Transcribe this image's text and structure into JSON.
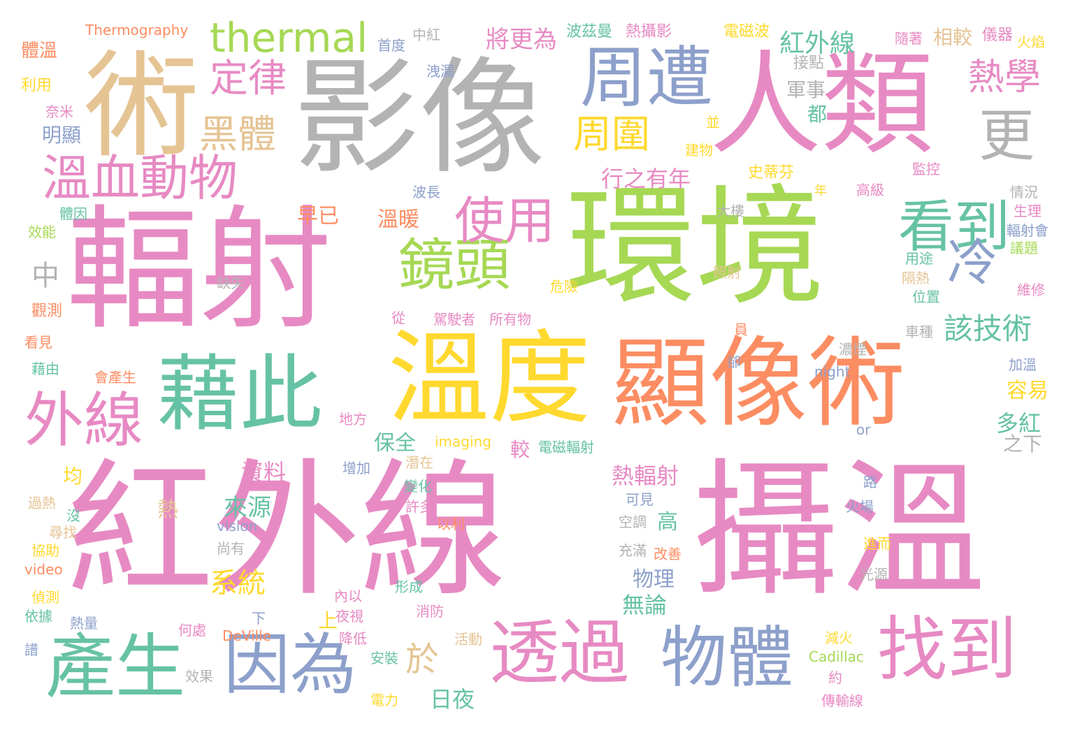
{
  "palette": {
    "pink": "#e78ac3",
    "green": "#a6d854",
    "gray": "#b3b3b3",
    "tan": "#e5c494",
    "blue": "#8da0cb",
    "orange": "#fc8d62",
    "teal": "#66c2a5",
    "yellow": "#ffd92f"
  },
  "words": [
    {
      "t": "紅外線",
      "c": "pink"
    },
    {
      "t": "攝溫",
      "c": "pink"
    },
    {
      "t": "輻射",
      "c": "pink"
    },
    {
      "t": "環境",
      "c": "green"
    },
    {
      "t": "影像",
      "c": "gray"
    },
    {
      "t": "人類",
      "c": "pink"
    },
    {
      "t": "術",
      "c": "tan"
    },
    {
      "t": "溫度",
      "c": "yellow"
    },
    {
      "t": "顯像術",
      "c": "orange"
    },
    {
      "t": "藉此",
      "c": "teal"
    },
    {
      "t": "周遭",
      "c": "blue"
    },
    {
      "t": "找到",
      "c": "pink"
    },
    {
      "t": "透過",
      "c": "pink"
    },
    {
      "t": "物體",
      "c": "blue"
    },
    {
      "t": "因為",
      "c": "blue"
    },
    {
      "t": "產生",
      "c": "teal"
    },
    {
      "t": "外線",
      "c": "pink"
    },
    {
      "t": "溫血動物",
      "c": "pink"
    },
    {
      "t": "鏡頭",
      "c": "green"
    },
    {
      "t": "看到",
      "c": "teal"
    },
    {
      "t": "更",
      "c": "gray"
    },
    {
      "t": "冷",
      "c": "blue"
    },
    {
      "t": "使用",
      "c": "pink"
    },
    {
      "t": "thermal",
      "c": "green"
    },
    {
      "t": "定律",
      "c": "pink"
    },
    {
      "t": "黑體",
      "c": "tan"
    },
    {
      "t": "周圍",
      "c": "yellow"
    },
    {
      "t": "熱學",
      "c": "pink"
    },
    {
      "t": "該技術",
      "c": "teal"
    },
    {
      "t": "於",
      "c": "tan"
    },
    {
      "t": "紅外線",
      "c": "teal"
    },
    {
      "t": "將更為",
      "c": "pink"
    },
    {
      "t": "行之有年",
      "c": "pink"
    },
    {
      "t": "熱輻射",
      "c": "pink"
    },
    {
      "t": "系統",
      "c": "yellow"
    },
    {
      "t": "來源",
      "c": "teal"
    },
    {
      "t": "資料",
      "c": "pink"
    },
    {
      "t": "物理",
      "c": "blue"
    },
    {
      "t": "無論",
      "c": "teal"
    },
    {
      "t": "日夜",
      "c": "teal"
    },
    {
      "t": "多紅",
      "c": "teal"
    },
    {
      "t": "容易",
      "c": "yellow"
    },
    {
      "t": "保全",
      "c": "teal"
    },
    {
      "t": "早已",
      "c": "orange"
    },
    {
      "t": "溫暖",
      "c": "orange"
    },
    {
      "t": "高",
      "c": "teal"
    },
    {
      "t": "明顯",
      "c": "blue"
    },
    {
      "t": "軍事",
      "c": "gray"
    },
    {
      "t": "都",
      "c": "teal"
    },
    {
      "t": "中",
      "c": "gray"
    },
    {
      "t": "均",
      "c": "yellow"
    },
    {
      "t": "熱",
      "c": "tan"
    },
    {
      "t": "上",
      "c": "yellow"
    },
    {
      "t": "較",
      "c": "pink"
    },
    {
      "t": "體溫",
      "c": "orange"
    },
    {
      "t": "Thermography",
      "c": "orange"
    },
    {
      "t": "首度",
      "c": "blue"
    },
    {
      "t": "中紅",
      "c": "gray"
    },
    {
      "t": "波茲曼",
      "c": "teal"
    },
    {
      "t": "熱攝影",
      "c": "pink"
    },
    {
      "t": "電磁波",
      "c": "yellow"
    },
    {
      "t": "相較",
      "c": "tan"
    },
    {
      "t": "隨著",
      "c": "pink"
    },
    {
      "t": "儀器",
      "c": "pink"
    },
    {
      "t": "火焰",
      "c": "yellow"
    },
    {
      "t": "接點",
      "c": "gray"
    },
    {
      "t": "洩漏",
      "c": "blue"
    },
    {
      "t": "利用",
      "c": "yellow"
    },
    {
      "t": "奈米",
      "c": "pink"
    },
    {
      "t": "並",
      "c": "yellow"
    },
    {
      "t": "建物",
      "c": "yellow"
    },
    {
      "t": "史蒂芬",
      "c": "yellow"
    },
    {
      "t": "監控",
      "c": "pink"
    },
    {
      "t": "波長",
      "c": "blue"
    },
    {
      "t": "年",
      "c": "yellow"
    },
    {
      "t": "高級",
      "c": "pink"
    },
    {
      "t": "情況",
      "c": "gray"
    },
    {
      "t": "生理",
      "c": "pink"
    },
    {
      "t": "輻射會",
      "c": "blue"
    },
    {
      "t": "議題",
      "c": "green"
    },
    {
      "t": "體因",
      "c": "teal"
    },
    {
      "t": "效能",
      "c": "green"
    },
    {
      "t": "大樓",
      "c": "gray"
    },
    {
      "t": "用途",
      "c": "teal"
    },
    {
      "t": "隔熱",
      "c": "tan"
    },
    {
      "t": "照射",
      "c": "tan"
    },
    {
      "t": "位置",
      "c": "teal"
    },
    {
      "t": "維修",
      "c": "pink"
    },
    {
      "t": "缺失",
      "c": "gray"
    },
    {
      "t": "危險",
      "c": "yellow"
    },
    {
      "t": "觀測",
      "c": "orange"
    },
    {
      "t": "從",
      "c": "pink"
    },
    {
      "t": "駕駛者",
      "c": "pink"
    },
    {
      "t": "所有物",
      "c": "pink"
    },
    {
      "t": "員",
      "c": "orange"
    },
    {
      "t": "車種",
      "c": "gray"
    },
    {
      "t": "看見",
      "c": "orange"
    },
    {
      "t": "濃煙",
      "c": "gray"
    },
    {
      "t": "藉由",
      "c": "teal"
    },
    {
      "t": "會產生",
      "c": "orange"
    },
    {
      "t": "卻",
      "c": "blue"
    },
    {
      "t": "night",
      "c": "blue"
    },
    {
      "t": "加溫",
      "c": "blue"
    },
    {
      "t": "地方",
      "c": "pink"
    },
    {
      "t": "imaging",
      "c": "yellow"
    },
    {
      "t": "電磁輻射",
      "c": "teal"
    },
    {
      "t": "or",
      "c": "blue"
    },
    {
      "t": "之下",
      "c": "gray"
    },
    {
      "t": "增加",
      "c": "blue"
    },
    {
      "t": "潛在",
      "c": "tan"
    },
    {
      "t": "路",
      "c": "blue"
    },
    {
      "t": "變化",
      "c": "teal"
    },
    {
      "t": "可見",
      "c": "blue"
    },
    {
      "t": "許多",
      "c": "pink"
    },
    {
      "t": "以利",
      "c": "orange"
    },
    {
      "t": "過熱",
      "c": "tan"
    },
    {
      "t": "沒",
      "c": "teal"
    },
    {
      "t": "vision",
      "c": "blue"
    },
    {
      "t": "空調",
      "c": "gray"
    },
    {
      "t": "火場",
      "c": "blue"
    },
    {
      "t": "尋找",
      "c": "tan"
    },
    {
      "t": "協助",
      "c": "yellow"
    },
    {
      "t": "尚有",
      "c": "gray"
    },
    {
      "t": "充滿",
      "c": "gray"
    },
    {
      "t": "改善",
      "c": "orange"
    },
    {
      "t": "進而",
      "c": "yellow"
    },
    {
      "t": "video",
      "c": "orange"
    },
    {
      "t": "光源",
      "c": "gray"
    },
    {
      "t": "形成",
      "c": "teal"
    },
    {
      "t": "內以",
      "c": "pink"
    },
    {
      "t": "偵測",
      "c": "yellow"
    },
    {
      "t": "消防",
      "c": "pink"
    },
    {
      "t": "依據",
      "c": "teal"
    },
    {
      "t": "夜視",
      "c": "pink"
    },
    {
      "t": "下",
      "c": "blue"
    },
    {
      "t": "熱量",
      "c": "blue"
    },
    {
      "t": "何處",
      "c": "pink"
    },
    {
      "t": "DeVille",
      "c": "orange"
    },
    {
      "t": "降低",
      "c": "pink"
    },
    {
      "t": "活動",
      "c": "tan"
    },
    {
      "t": "減火",
      "c": "yellow"
    },
    {
      "t": "譜",
      "c": "blue"
    },
    {
      "t": "安裝",
      "c": "teal"
    },
    {
      "t": "Cadillac",
      "c": "green"
    },
    {
      "t": "效果",
      "c": "gray"
    },
    {
      "t": "約",
      "c": "pink"
    },
    {
      "t": "電力",
      "c": "yellow"
    },
    {
      "t": "傳輸線",
      "c": "pink"
    }
  ]
}
